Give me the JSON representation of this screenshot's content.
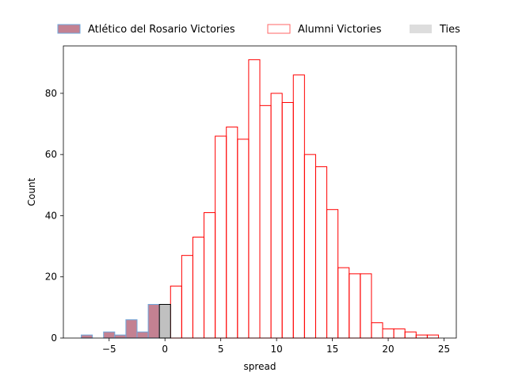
{
  "chart_data": {
    "type": "histogram",
    "title": "",
    "xlabel": "spread",
    "ylabel": "Count",
    "xlim": [
      -9.1,
      26.1
    ],
    "ylim": [
      0,
      95.5
    ],
    "xticks": [
      -5,
      0,
      5,
      10,
      15,
      20,
      25
    ],
    "yticks": [
      0,
      20,
      40,
      60,
      80
    ],
    "xtick_labels": [
      "−5",
      "0",
      "5",
      "10",
      "15",
      "20",
      "25"
    ],
    "ytick_labels": [
      "0",
      "20",
      "40",
      "60",
      "80"
    ],
    "bin_width": 1,
    "legend_position": "top, outside plot, horizontal",
    "series": [
      {
        "name": "Atlético del Rosario Victories",
        "fill": "#9b2d4a",
        "fill_opacity": 0.6,
        "edge": "#6fa8dc",
        "bins": [
          {
            "x": -7,
            "count": 1
          },
          {
            "x": -5,
            "count": 2
          },
          {
            "x": -4,
            "count": 1
          },
          {
            "x": -3,
            "count": 6
          },
          {
            "x": -2,
            "count": 2
          },
          {
            "x": -1,
            "count": 11
          }
        ]
      },
      {
        "name": "Alumni Victories",
        "fill": "none",
        "edge": "#ff0000",
        "bins": [
          {
            "x": 1,
            "count": 17
          },
          {
            "x": 2,
            "count": 27
          },
          {
            "x": 3,
            "count": 33
          },
          {
            "x": 4,
            "count": 41
          },
          {
            "x": 5,
            "count": 66
          },
          {
            "x": 6,
            "count": 69
          },
          {
            "x": 7,
            "count": 65
          },
          {
            "x": 8,
            "count": 91
          },
          {
            "x": 9,
            "count": 76
          },
          {
            "x": 10,
            "count": 80
          },
          {
            "x": 11,
            "count": 77
          },
          {
            "x": 12,
            "count": 86
          },
          {
            "x": 13,
            "count": 60
          },
          {
            "x": 14,
            "count": 56
          },
          {
            "x": 15,
            "count": 42
          },
          {
            "x": 16,
            "count": 23
          },
          {
            "x": 17,
            "count": 21
          },
          {
            "x": 18,
            "count": 21
          },
          {
            "x": 19,
            "count": 5
          },
          {
            "x": 20,
            "count": 3
          },
          {
            "x": 21,
            "count": 3
          },
          {
            "x": 22,
            "count": 2
          },
          {
            "x": 23,
            "count": 1
          },
          {
            "x": 24,
            "count": 1
          }
        ]
      },
      {
        "name": "Ties",
        "fill": "#c0c0c0",
        "edge": "#000000",
        "bins": [
          {
            "x": 0,
            "count": 11
          }
        ]
      }
    ]
  }
}
